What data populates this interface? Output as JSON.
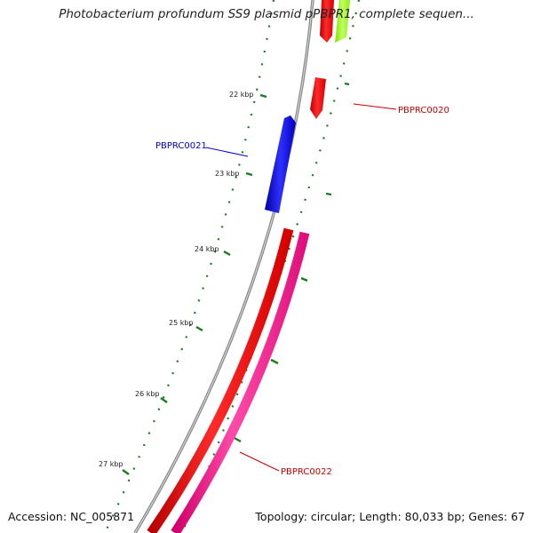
{
  "title": "Photobacterium profundum SS9 plasmid pPBPR1, complete sequen...",
  "accession": "Accession: NC_005871",
  "summary": "Topology: circular; Length: 80,033 bp; Genes: 67",
  "ticks": [
    "22 kbp",
    "23 kbp",
    "24 kbp",
    "25 kbp",
    "26 kbp",
    "27 kbp"
  ],
  "genes": [
    {
      "label": "PBPRC0020",
      "color": "#cc0000"
    },
    {
      "label": "PBPRC0021",
      "color": "#0000cc"
    },
    {
      "label": "PBPRC0022",
      "color": "#cc0000"
    }
  ],
  "colors": {
    "backbone": "#8c8c8c",
    "tick": "#1f7a1f",
    "red_feature": "#ff1a1a",
    "pink_feature": "#ff2a9a",
    "blue_feature": "#1f1fe6",
    "green_feature": "#a6ff33"
  }
}
